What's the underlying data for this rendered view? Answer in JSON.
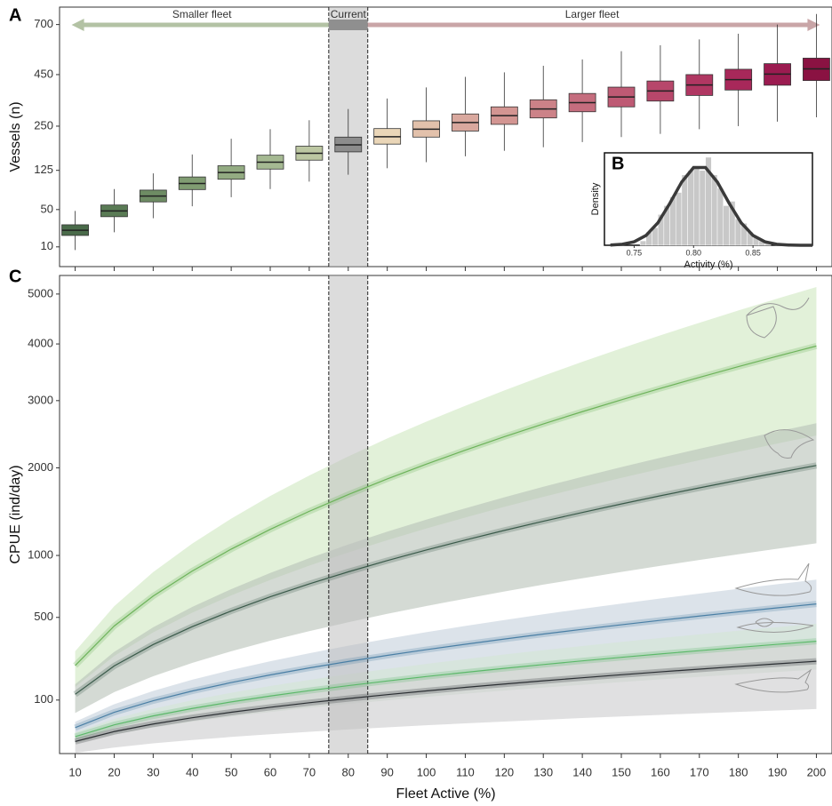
{
  "chart_data": [
    {
      "type": "box",
      "panel_label": "A",
      "ylabel": "Vessels (n)",
      "annotations": [
        "Smaller fleet",
        "Current",
        "Larger fleet"
      ],
      "x": [
        10,
        20,
        30,
        40,
        50,
        60,
        70,
        80,
        90,
        100,
        110,
        120,
        130,
        140,
        150,
        160,
        170,
        180,
        190,
        200
      ],
      "median": [
        24,
        48,
        72,
        96,
        120,
        145,
        168,
        192,
        216,
        240,
        262,
        286,
        310,
        334,
        356,
        380,
        405,
        428,
        452,
        476
      ],
      "q1": [
        19,
        40,
        62,
        84,
        105,
        128,
        150,
        172,
        194,
        215,
        234,
        256,
        278,
        300,
        318,
        340,
        362,
        384,
        404,
        424
      ],
      "q3": [
        30,
        57,
        83,
        110,
        136,
        163,
        188,
        215,
        242,
        268,
        292,
        318,
        345,
        370,
        396,
        422,
        450,
        474,
        500,
        526
      ],
      "whisker_low": [
        8,
        22,
        38,
        55,
        70,
        85,
        100,
        115,
        130,
        145,
        160,
        175,
        185,
        200,
        215,
        225,
        240,
        250,
        265,
        280
      ],
      "whisker_high": [
        48,
        85,
        118,
        165,
        210,
        240,
        270,
        310,
        350,
        395,
        440,
        460,
        490,
        520,
        560,
        590,
        620,
        650,
        700,
        760
      ],
      "colors": [
        "#4a6b4a",
        "#5a7b55",
        "#6e8c64",
        "#809c72",
        "#93ab82",
        "#a5b992",
        "#bcc7a2",
        "#8c8c8c",
        "#ead6b8",
        "#e2c1ab",
        "#d9a89e",
        "#d39592",
        "#cc8288",
        "#c56d7e",
        "#be5a74",
        "#b7476b",
        "#b03762",
        "#a8285a",
        "#9b1b50",
        "#8a1242"
      ],
      "arrow_colors": [
        "#b3c2a4",
        "#8f8f8f",
        "#c9a5a7"
      ],
      "xlim": [
        6,
        204
      ],
      "ylim": [
        1.2,
        800
      ],
      "yscale": "sqrt",
      "yticks": [
        10,
        50,
        125,
        250,
        450,
        700
      ],
      "highlight": [
        75,
        85
      ]
    },
    {
      "type": "histogram",
      "panel_label": "B",
      "xlabel": "Activity (%)",
      "ylabel": "Density",
      "bins": [
        0.755,
        0.76,
        0.765,
        0.77,
        0.775,
        0.78,
        0.785,
        0.79,
        0.795,
        0.8,
        0.805,
        0.81,
        0.815,
        0.82,
        0.825,
        0.83,
        0.835,
        0.84,
        0.845,
        0.85,
        0.855,
        0.86,
        0.865
      ],
      "values": [
        1,
        3,
        4,
        7,
        9,
        11,
        12,
        16,
        17,
        18,
        17,
        20,
        16,
        13,
        9,
        10,
        6,
        5,
        3,
        2,
        1,
        0.5
      ],
      "color": "#c8c8c8",
      "curve": {
        "x": [
          0.73,
          0.74,
          0.75,
          0.76,
          0.77,
          0.78,
          0.79,
          0.8,
          0.81,
          0.82,
          0.83,
          0.84,
          0.85,
          0.86,
          0.87,
          0.88,
          0.89,
          0.9
        ],
        "y": [
          0.05,
          0.23,
          0.8,
          2.24,
          5.12,
          9.51,
          14.37,
          17.67,
          17.67,
          14.37,
          9.51,
          5.12,
          2.24,
          0.8,
          0.23,
          0.05,
          0.01,
          0
        ],
        "color": "#3a3a3a"
      },
      "xlim": [
        0.725,
        0.9
      ],
      "ylim": [
        0,
        21
      ],
      "xticks": [
        0.75,
        {
          "value": 0.8,
          "label": "0.80"
        },
        0.85
      ]
    },
    {
      "type": "line",
      "panel_label": "C",
      "xlabel": "Fleet Active (%)",
      "ylabel": "CPUE (ind/day)",
      "x": [
        10,
        20,
        30,
        40,
        50,
        60,
        70,
        80,
        90,
        100,
        110,
        120,
        130,
        140,
        150,
        160,
        170,
        180,
        190,
        200
      ],
      "series": [
        {
          "color": "#6db35a",
          "band_color": "#cfe8bf",
          "values": [
            230,
            444,
            653,
            858,
            1061,
            1262,
            1461,
            1658,
            1855,
            2050,
            2244,
            2438,
            2631,
            2822,
            3013,
            3204,
            3393,
            3583,
            3772,
            3961
          ],
          "lower": [
            143,
            275,
            405,
            532,
            658,
            782,
            906,
            1028,
            1150,
            1271,
            1391,
            1512,
            1631,
            1750,
            1868,
            1986,
            2104,
            2221,
            2339,
            2456
          ],
          "upper": [
            299,
            577,
            849,
            1115,
            1379,
            1641,
            1899,
            2155,
            2412,
            2665,
            2917,
            3169,
            3420,
            3669,
            3917,
            4165,
            4411,
            4658,
            4904,
            5149
          ]
        },
        {
          "color": "#3a5a4a",
          "band_color": "#b8c2b8",
          "values": [
            118,
            228,
            335,
            440,
            544,
            647,
            749,
            851,
            952,
            1052,
            1151,
            1251,
            1350,
            1448,
            1546,
            1644,
            1741,
            1838,
            1935,
            2032
          ],
          "lower": [
            65,
            125,
            184,
            242,
            299,
            356,
            412,
            468,
            524,
            579,
            633,
            688,
            743,
            796,
            850,
            904,
            958,
            1011,
            1064,
            1118
          ],
          "upper": [
            153,
            296,
            436,
            572,
            707,
            841,
            974,
            1106,
            1238,
            1368,
            1496,
            1626,
            1755,
            1882,
            2010,
            2137,
            2263,
            2389,
            2516,
            2642
          ]
        },
        {
          "color": "#4a7fa5",
          "band_color": "#c5d0dc",
          "values": [
            34.5,
            66.7,
            98.0,
            128.8,
            159.2,
            189.3,
            219.1,
            248.7,
            278.2,
            307.5,
            336.6,
            365.7,
            394.7,
            423.3,
            452.0,
            480.6,
            508.9,
            537.5,
            565.8,
            594.1
          ],
          "lower": [
            20.7,
            40.0,
            58.8,
            77.3,
            95.5,
            113.6,
            131.5,
            149.2,
            166.9,
            184.5,
            202.0,
            219.4,
            236.8,
            254.0,
            271.2,
            288.4,
            305.3,
            322.5,
            339.5,
            356.5
          ],
          "upper": [
            45.5,
            88.0,
            129.4,
            170.0,
            210.1,
            249.9,
            289.2,
            328.3,
            367.2,
            405.9,
            444.3,
            482.7,
            521.0,
            558.8,
            596.6,
            634.4,
            671.7,
            709.5,
            746.9,
            784.2
          ]
        },
        {
          "color": "#5cb86a",
          "band_color": "#d3e6d3",
          "values": [
            20.5,
            39.6,
            58.2,
            76.5,
            94.6,
            112.5,
            130.2,
            147.8,
            165.3,
            182.7,
            200.0,
            217.3,
            234.5,
            251.5,
            268.6,
            285.6,
            302.4,
            319.4,
            336.2,
            353.0
          ],
          "lower": [
            12.3,
            23.8,
            34.9,
            45.9,
            56.8,
            67.5,
            78.1,
            88.7,
            99.2,
            109.6,
            120.0,
            130.4,
            140.7,
            150.9,
            161.2,
            171.4,
            181.4,
            191.6,
            201.7,
            211.8
          ],
          "upper": [
            26.7,
            51.5,
            75.7,
            99.5,
            123.0,
            146.3,
            169.3,
            192.1,
            214.9,
            237.5,
            260.0,
            282.5,
            304.9,
            327.0,
            349.2,
            371.3,
            393.1,
            415.2,
            437.1,
            458.9
          ]
        },
        {
          "color": "#2b2f33",
          "band_color": "#cbcccd",
          "values": [
            14.5,
            28.0,
            41.2,
            54.1,
            66.9,
            79.5,
            92.1,
            104.5,
            116.9,
            129.2,
            141.5,
            153.7,
            165.9,
            177.9,
            190.0,
            202.0,
            213.9,
            225.9,
            237.8,
            249.7
          ],
          "lower": [
            4.4,
            8.4,
            12.4,
            16.2,
            20.1,
            23.9,
            27.6,
            31.4,
            35.1,
            38.8,
            42.5,
            46.1,
            49.8,
            53.4,
            57.0,
            60.6,
            64.2,
            67.8,
            71.3,
            74.9
          ],
          "upper": [
            20.3,
            39.2,
            57.7,
            75.7,
            93.7,
            111.3,
            128.9,
            146.3,
            163.7,
            180.9,
            198.1,
            215.2,
            232.3,
            249.1,
            266.0,
            282.8,
            299.5,
            316.3,
            332.9,
            349.6
          ]
        }
      ],
      "xlim": [
        6,
        204
      ],
      "ylim": [
        4,
        5400
      ],
      "yscale": "sqrt",
      "xticks": [
        10,
        20,
        30,
        40,
        50,
        60,
        70,
        80,
        90,
        100,
        110,
        120,
        130,
        140,
        150,
        160,
        170,
        180,
        190,
        200
      ],
      "yticks": [
        100,
        500,
        1000,
        2000,
        3000,
        4000,
        5000
      ],
      "highlight": [
        75,
        85
      ]
    }
  ]
}
